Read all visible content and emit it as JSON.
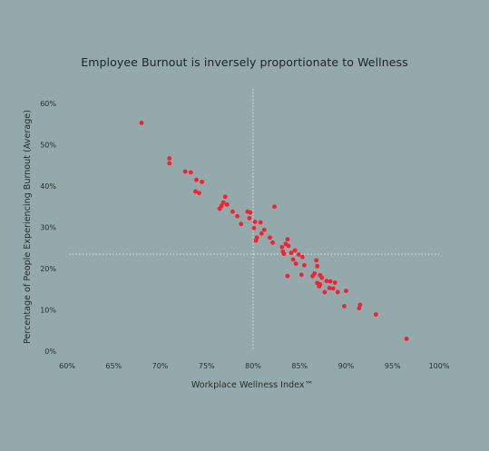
{
  "chart_data": {
    "type": "scatter",
    "title": "Employee Burnout is inversely proportionate to Wellness",
    "xlabel": "Workplace Wellness Index™",
    "ylabel": "Percentage of People Experiencing Burnout (Average)",
    "xlim": [
      60,
      100
    ],
    "ylim": [
      0,
      60
    ],
    "x_ticks": [
      "60%",
      "65%",
      "70%",
      "75%",
      "80%",
      "85%",
      "90%",
      "95%",
      "100%"
    ],
    "y_ticks": [
      "0%",
      "10%",
      "20%",
      "30%",
      "40%",
      "50%",
      "60%"
    ],
    "reference_lines": {
      "x": 80,
      "y": 23.5
    },
    "point_color": "#f4212e",
    "points": [
      [
        68,
        55.3
      ],
      [
        71,
        46.7
      ],
      [
        71,
        45.5
      ],
      [
        72.7,
        43.5
      ],
      [
        73.3,
        43.3
      ],
      [
        73.9,
        41.5
      ],
      [
        74.5,
        41
      ],
      [
        73.8,
        38.7
      ],
      [
        74.2,
        38.3
      ],
      [
        77,
        37.4
      ],
      [
        76.6,
        35.2
      ],
      [
        76.8,
        36
      ],
      [
        77.2,
        35.5
      ],
      [
        76.4,
        34.5
      ],
      [
        77.8,
        33.8
      ],
      [
        79.4,
        33.8
      ],
      [
        79.7,
        33.6
      ],
      [
        79.6,
        32.2
      ],
      [
        78.3,
        32.7
      ],
      [
        80.2,
        31.3
      ],
      [
        80.8,
        31.2
      ],
      [
        78.7,
        30.8
      ],
      [
        80.1,
        29.8
      ],
      [
        81.2,
        29.4
      ],
      [
        82.3,
        35
      ],
      [
        80.9,
        28.5
      ],
      [
        80.4,
        27.5
      ],
      [
        81.8,
        27.5
      ],
      [
        80.3,
        26.8
      ],
      [
        82.1,
        26.3
      ],
      [
        83.2,
        24.1
      ],
      [
        83.7,
        27.1
      ],
      [
        83.5,
        26
      ],
      [
        83.8,
        25.5
      ],
      [
        83.1,
        25.2
      ],
      [
        84.5,
        24.4
      ],
      [
        83.3,
        23.6
      ],
      [
        84.1,
        23.8
      ],
      [
        84.9,
        23.4
      ],
      [
        85.3,
        22.8
      ],
      [
        84.3,
        22.2
      ],
      [
        85.5,
        20.8
      ],
      [
        86.8,
        22
      ],
      [
        84.6,
        21.2
      ],
      [
        86.9,
        20.6
      ],
      [
        85.2,
        18.5
      ],
      [
        86.6,
        18.8
      ],
      [
        87.2,
        18.4
      ],
      [
        86.4,
        18.2
      ],
      [
        87.4,
        17.8
      ],
      [
        83.7,
        18.2
      ],
      [
        87.9,
        17
      ],
      [
        88.3,
        16.9
      ],
      [
        86.9,
        16.5
      ],
      [
        87.2,
        16.2
      ],
      [
        88.8,
        16.6
      ],
      [
        88.2,
        15.3
      ],
      [
        87.1,
        15.7
      ],
      [
        88.6,
        15.2
      ],
      [
        89.1,
        14.3
      ],
      [
        87.7,
        14.3
      ],
      [
        90,
        14.6
      ],
      [
        89.8,
        10.9
      ],
      [
        91.5,
        11.2
      ],
      [
        91.4,
        10.4
      ],
      [
        93.2,
        8.9
      ],
      [
        96.5,
        3
      ]
    ]
  }
}
